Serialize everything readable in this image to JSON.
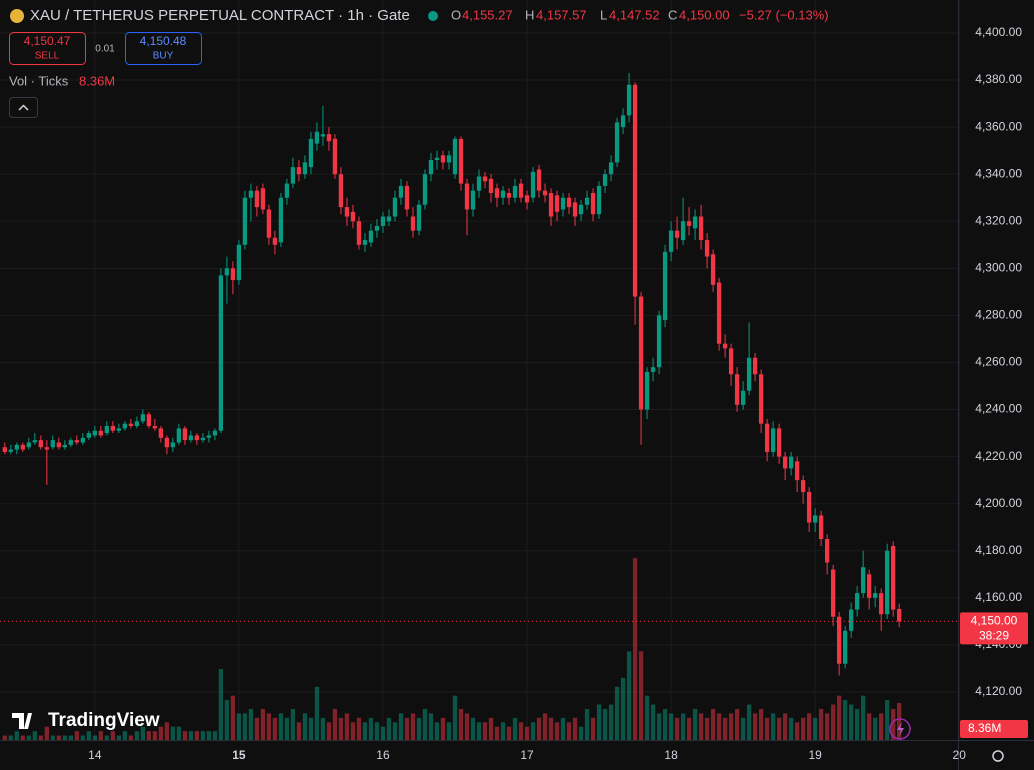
{
  "chart_data": {
    "type": "candlestick",
    "x": [
      -15,
      -14,
      -13,
      -12,
      -11,
      -10,
      -9,
      -8,
      -7,
      -6,
      -5,
      -4,
      -3,
      -2,
      -1,
      0,
      1,
      2,
      3,
      4,
      5,
      6,
      7,
      8,
      9,
      10,
      11,
      12,
      13,
      14,
      15,
      16,
      17,
      18,
      19,
      20,
      21,
      22,
      23,
      24,
      25,
      26,
      27,
      28,
      29,
      30,
      31,
      32,
      33,
      34,
      35,
      36,
      37,
      38,
      39,
      40,
      41,
      42,
      43,
      44,
      45,
      46,
      47,
      48,
      49,
      50,
      51,
      52,
      53,
      54,
      55,
      56,
      57,
      58,
      59,
      60,
      61,
      62,
      63,
      64,
      65,
      66,
      67,
      68,
      69,
      70,
      71,
      72,
      73,
      74,
      75,
      76,
      77,
      78,
      79,
      80,
      81,
      82,
      83,
      84,
      85,
      86,
      87,
      88,
      89,
      90,
      91,
      92,
      93,
      94,
      95,
      96,
      97,
      98,
      99,
      100,
      101,
      102,
      103,
      104,
      105,
      106,
      107,
      108,
      109,
      110,
      111,
      112,
      113,
      114,
      115,
      116,
      117,
      118,
      119,
      120,
      121,
      122,
      123,
      124,
      125,
      126,
      127,
      128,
      129,
      130,
      131,
      132,
      133,
      134
    ],
    "ohlc": [
      [
        4224,
        4226,
        4221,
        4222
      ],
      [
        4222,
        4225,
        4221,
        4223
      ],
      [
        4223,
        4226,
        4221,
        4225
      ],
      [
        4225,
        4226,
        4222,
        4223
      ],
      [
        4224,
        4228,
        4223,
        4226
      ],
      [
        4226,
        4230,
        4225,
        4227
      ],
      [
        4227,
        4229,
        4223,
        4224
      ],
      [
        4224,
        4227,
        4208,
        4223
      ],
      [
        4224,
        4229,
        4223,
        4227
      ],
      [
        4226,
        4228,
        4223,
        4224
      ],
      [
        4224,
        4227,
        4223,
        4225
      ],
      [
        4225,
        4228,
        4224,
        4227
      ],
      [
        4227,
        4229,
        4225,
        4226
      ],
      [
        4226,
        4230,
        4225,
        4228
      ],
      [
        4228,
        4231,
        4227,
        4230
      ],
      [
        4229,
        4233,
        4228,
        4231
      ],
      [
        4231,
        4233,
        4228,
        4229
      ],
      [
        4230,
        4235,
        4229,
        4233
      ],
      [
        4233,
        4235,
        4230,
        4231
      ],
      [
        4231,
        4234,
        4230,
        4232
      ],
      [
        4232,
        4235,
        4231,
        4234
      ],
      [
        4234,
        4236,
        4232,
        4233
      ],
      [
        4233,
        4237,
        4232,
        4235
      ],
      [
        4235,
        4240,
        4234,
        4238
      ],
      [
        4238,
        4239,
        4232,
        4233
      ],
      [
        4233,
        4236,
        4231,
        4232
      ],
      [
        4232,
        4233,
        4226,
        4228
      ],
      [
        4228,
        4229,
        4221,
        4224
      ],
      [
        4224,
        4228,
        4222,
        4226
      ],
      [
        4226,
        4234,
        4225,
        4232
      ],
      [
        4232,
        4233,
        4225,
        4227
      ],
      [
        4227,
        4231,
        4226,
        4229
      ],
      [
        4229,
        4230,
        4225,
        4227
      ],
      [
        4227,
        4230,
        4226,
        4228
      ],
      [
        4228,
        4231,
        4226,
        4229
      ],
      [
        4229,
        4232,
        4227,
        4231
      ],
      [
        4231,
        4300,
        4230,
        4297
      ],
      [
        4297,
        4305,
        4285,
        4300
      ],
      [
        4300,
        4303,
        4289,
        4295
      ],
      [
        4295,
        4312,
        4293,
        4310
      ],
      [
        4310,
        4333,
        4308,
        4330
      ],
      [
        4330,
        4336,
        4320,
        4333
      ],
      [
        4333,
        4335,
        4322,
        4326
      ],
      [
        4334,
        4336,
        4323,
        4325
      ],
      [
        4325,
        4327,
        4310,
        4313
      ],
      [
        4313,
        4316,
        4306,
        4310
      ],
      [
        4311,
        4332,
        4309,
        4330
      ],
      [
        4330,
        4338,
        4327,
        4336
      ],
      [
        4336,
        4347,
        4334,
        4343
      ],
      [
        4343,
        4346,
        4337,
        4340
      ],
      [
        4340,
        4348,
        4338,
        4345
      ],
      [
        4343,
        4358,
        4340,
        4355
      ],
      [
        4353,
        4362,
        4350,
        4358
      ],
      [
        4356,
        4369,
        4352,
        4357
      ],
      [
        4357,
        4360,
        4350,
        4354
      ],
      [
        4355,
        4357,
        4338,
        4340
      ],
      [
        4340,
        4343,
        4323,
        4326
      ],
      [
        4326,
        4330,
        4318,
        4322
      ],
      [
        4324,
        4327,
        4317,
        4320
      ],
      [
        4320,
        4322,
        4308,
        4310
      ],
      [
        4310,
        4315,
        4307,
        4312
      ],
      [
        4311,
        4319,
        4309,
        4316
      ],
      [
        4316,
        4321,
        4313,
        4318
      ],
      [
        4318,
        4324,
        4315,
        4322
      ],
      [
        4320,
        4325,
        4318,
        4322
      ],
      [
        4322,
        4333,
        4320,
        4330
      ],
      [
        4330,
        4338,
        4327,
        4335
      ],
      [
        4335,
        4337,
        4322,
        4325
      ],
      [
        4322,
        4326,
        4313,
        4316
      ],
      [
        4316,
        4329,
        4314,
        4327
      ],
      [
        4327,
        4342,
        4325,
        4340
      ],
      [
        4340,
        4349,
        4337,
        4346
      ],
      [
        4346,
        4350,
        4342,
        4347
      ],
      [
        4348,
        4350,
        4342,
        4345
      ],
      [
        4345,
        4350,
        4342,
        4348
      ],
      [
        4340,
        4356,
        4338,
        4355
      ],
      [
        4355,
        4356,
        4333,
        4336
      ],
      [
        4336,
        4338,
        4314,
        4325
      ],
      [
        4325,
        4336,
        4322,
        4333
      ],
      [
        4333,
        4342,
        4330,
        4339
      ],
      [
        4339,
        4341,
        4334,
        4337
      ],
      [
        4338,
        4340,
        4328,
        4332
      ],
      [
        4334,
        4336,
        4326,
        4330
      ],
      [
        4330,
        4335,
        4327,
        4333
      ],
      [
        4332,
        4334,
        4327,
        4330
      ],
      [
        4330,
        4338,
        4328,
        4335
      ],
      [
        4336,
        4338,
        4328,
        4330
      ],
      [
        4331,
        4333,
        4325,
        4328
      ],
      [
        4330,
        4343,
        4328,
        4341
      ],
      [
        4342,
        4344,
        4330,
        4333
      ],
      [
        4333,
        4336,
        4328,
        4331
      ],
      [
        4332,
        4334,
        4318,
        4322
      ],
      [
        4331,
        4333,
        4320,
        4324
      ],
      [
        4325,
        4332,
        4322,
        4330
      ],
      [
        4330,
        4332,
        4323,
        4326
      ],
      [
        4328,
        4330,
        4318,
        4322
      ],
      [
        4323,
        4329,
        4320,
        4327
      ],
      [
        4327,
        4333,
        4325,
        4330
      ],
      [
        4332,
        4334,
        4320,
        4323
      ],
      [
        4323,
        4337,
        4321,
        4335
      ],
      [
        4335,
        4342,
        4332,
        4340
      ],
      [
        4340,
        4348,
        4337,
        4345
      ],
      [
        4345,
        4364,
        4343,
        4362
      ],
      [
        4360,
        4368,
        4357,
        4365
      ],
      [
        4365,
        4383,
        4362,
        4378
      ],
      [
        4378,
        4379,
        4276,
        4288
      ],
      [
        4288,
        4290,
        4225,
        4240
      ],
      [
        4240,
        4258,
        4236,
        4256
      ],
      [
        4256,
        4262,
        4252,
        4258
      ],
      [
        4258,
        4282,
        4255,
        4280
      ],
      [
        4278,
        4310,
        4275,
        4307
      ],
      [
        4307,
        4320,
        4303,
        4316
      ],
      [
        4316,
        4322,
        4308,
        4313
      ],
      [
        4312,
        4330,
        4310,
        4320
      ],
      [
        4320,
        4326,
        4314,
        4318
      ],
      [
        4317,
        4325,
        4312,
        4322
      ],
      [
        4322,
        4327,
        4308,
        4312
      ],
      [
        4312,
        4315,
        4300,
        4305
      ],
      [
        4306,
        4308,
        4290,
        4293
      ],
      [
        4294,
        4296,
        4265,
        4268
      ],
      [
        4268,
        4272,
        4262,
        4266
      ],
      [
        4266,
        4268,
        4250,
        4255
      ],
      [
        4255,
        4258,
        4239,
        4242
      ],
      [
        4242,
        4252,
        4240,
        4248
      ],
      [
        4248,
        4277,
        4246,
        4262
      ],
      [
        4262,
        4264,
        4252,
        4255
      ],
      [
        4255,
        4257,
        4230,
        4234
      ],
      [
        4234,
        4236,
        4218,
        4222
      ],
      [
        4222,
        4235,
        4220,
        4232
      ],
      [
        4232,
        4234,
        4217,
        4220
      ],
      [
        4220,
        4222,
        4210,
        4215
      ],
      [
        4215,
        4222,
        4212,
        4220
      ],
      [
        4218,
        4220,
        4205,
        4210
      ],
      [
        4210,
        4212,
        4200,
        4205
      ],
      [
        4205,
        4207,
        4188,
        4192
      ],
      [
        4192,
        4198,
        4188,
        4195
      ],
      [
        4195,
        4197,
        4182,
        4185
      ],
      [
        4185,
        4187,
        4170,
        4175
      ],
      [
        4172,
        4174,
        4148,
        4152
      ],
      [
        4152,
        4154,
        4127,
        4132
      ],
      [
        4132,
        4148,
        4130,
        4146
      ],
      [
        4146,
        4158,
        4143,
        4155
      ],
      [
        4155,
        4165,
        4152,
        4162
      ],
      [
        4162,
        4180,
        4160,
        4173
      ],
      [
        4170,
        4172,
        4155,
        4160
      ],
      [
        4160,
        4165,
        4156,
        4162
      ],
      [
        4162,
        4164,
        4146,
        4153
      ],
      [
        4153,
        4183,
        4151,
        4180
      ],
      [
        4182,
        4184,
        4152,
        4155
      ],
      [
        4155.27,
        4157.57,
        4147.52,
        4150
      ]
    ],
    "volume": [
      1,
      1,
      2,
      1,
      1,
      2,
      1,
      3,
      1,
      1,
      1,
      1,
      2,
      1,
      2,
      1,
      2,
      1,
      2,
      1,
      2,
      1,
      2,
      3,
      2,
      2,
      3,
      4,
      3,
      3,
      2,
      2,
      2,
      2,
      2,
      2,
      16,
      9,
      10,
      6,
      6,
      7,
      5,
      7,
      6,
      5,
      6,
      5,
      7,
      4,
      6,
      5,
      12,
      5,
      4,
      7,
      5,
      6,
      4,
      5,
      4,
      5,
      4,
      3,
      5,
      4,
      6,
      5,
      6,
      5,
      7,
      6,
      4,
      5,
      4,
      10,
      7,
      6,
      5,
      4,
      4,
      5,
      3,
      4,
      3,
      5,
      4,
      3,
      4,
      5,
      6,
      5,
      4,
      5,
      4,
      5,
      3,
      7,
      5,
      8,
      7,
      8,
      12,
      14,
      20,
      41,
      20,
      10,
      8,
      6,
      7,
      6,
      5,
      6,
      5,
      7,
      6,
      5,
      7,
      6,
      5,
      6,
      7,
      5,
      8,
      6,
      7,
      5,
      6,
      5,
      6,
      5,
      4,
      5,
      6,
      5,
      7,
      6,
      8,
      10,
      9,
      8,
      7,
      10,
      6,
      5,
      6,
      9,
      7,
      8.36
    ],
    "volume_ylim": [
      0,
      60
    ],
    "volume_title": "Vol · Ticks",
    "volume_readout": "8.36M",
    "up_color": "#089981",
    "down_color": "#f23645",
    "xlim": [
      -15.8,
      143.8
    ],
    "xticks": [
      {
        "value": 0,
        "label": "14"
      },
      {
        "value": 24,
        "label": "15"
      },
      {
        "value": 48,
        "label": "16"
      },
      {
        "value": 72,
        "label": "17"
      },
      {
        "value": 96,
        "label": "18"
      },
      {
        "value": 120,
        "label": "19"
      },
      {
        "value": 144,
        "label": "20"
      }
    ],
    "ylim": [
      4099.6,
      4414
    ],
    "yticks": [
      {
        "value": 4120,
        "label": "4,120.00"
      },
      {
        "value": 4140,
        "label": "4,140.00"
      },
      {
        "value": 4160,
        "label": "4,160.00"
      },
      {
        "value": 4180,
        "label": "4,180.00"
      },
      {
        "value": 4200,
        "label": "4,200.00"
      },
      {
        "value": 4220,
        "label": "4,220.00"
      },
      {
        "value": 4240,
        "label": "4,240.00"
      },
      {
        "value": 4260,
        "label": "4,260.00"
      },
      {
        "value": 4280,
        "label": "4,280.00"
      },
      {
        "value": 4300,
        "label": "4,300.00"
      },
      {
        "value": 4320,
        "label": "4,320.00"
      },
      {
        "value": 4340,
        "label": "4,340.00"
      },
      {
        "value": 4360,
        "label": "4,360.00"
      },
      {
        "value": 4380,
        "label": "4,380.00"
      },
      {
        "value": 4400,
        "label": "4,400.00"
      }
    ],
    "grid": true,
    "last_price_label": "4,150.00",
    "countdown": "38:29"
  },
  "ui": {
    "title": "XAU / TETHERUS PERPETUAL CONTRACT · 1h · Gate",
    "readout": [
      {
        "key": "O",
        "value": "4,155.27"
      },
      {
        "key": "H",
        "value": "4,157.57"
      },
      {
        "key": "L",
        "value": "4,147.52"
      },
      {
        "key": "C",
        "value": "4,150.00"
      }
    ],
    "change": "−5.27 (−0.13%)",
    "sell_price": "4,150.47",
    "sell": "SELL",
    "spread": "0.01",
    "buy_price": "4,150.48",
    "buy": "BUY",
    "brand": "TradingView"
  }
}
